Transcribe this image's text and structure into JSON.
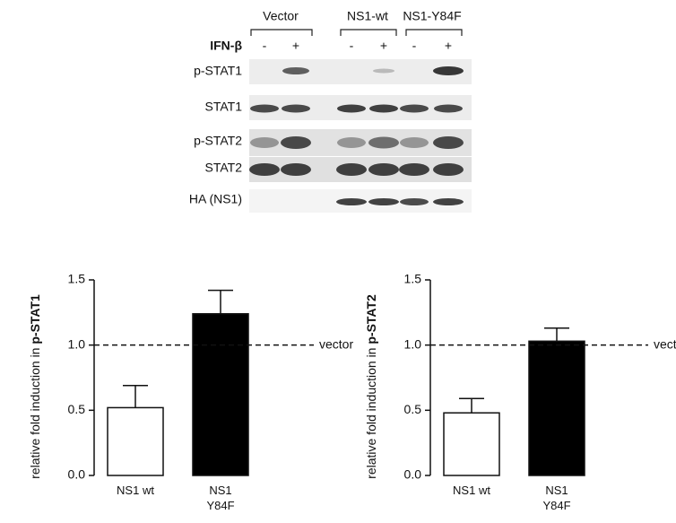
{
  "blot": {
    "groups": [
      "Vector",
      "NS1-wt",
      "NS1-Y84F"
    ],
    "treatment": {
      "label": "IFN-β",
      "signs": [
        "-",
        "+",
        "-",
        "+",
        "-",
        "+"
      ]
    },
    "rows": [
      "p-STAT1",
      "STAT1",
      "p-STAT2",
      "STAT2",
      "HA (NS1)"
    ]
  },
  "chart_data": [
    {
      "type": "bar",
      "ylabel": "relative fold induction in",
      "ylabel_emphasis": "p-STAT1",
      "categories": [
        "NS1 wt",
        "NS1 Y84F"
      ],
      "values": [
        0.52,
        1.24
      ],
      "errors": [
        0.17,
        0.18
      ],
      "colors": [
        "#ffffff",
        "#000000"
      ],
      "ylim": [
        0,
        1.5
      ],
      "yticks": [
        {
          "value": 0,
          "label": "0.0"
        },
        0.5,
        {
          "value": 1,
          "label": "1.0"
        },
        1.5
      ],
      "reference_line": {
        "value": 1,
        "label": "vector"
      }
    },
    {
      "type": "bar",
      "ylabel": "relative fold induction in",
      "ylabel_emphasis": "p-STAT2",
      "categories": [
        "NS1 wt",
        "NS1 Y84F"
      ],
      "values": [
        0.48,
        1.03
      ],
      "errors": [
        0.11,
        0.1
      ],
      "colors": [
        "#ffffff",
        "#000000"
      ],
      "ylim": [
        0,
        1.5
      ],
      "yticks": [
        {
          "value": 0,
          "label": "0.0"
        },
        0.5,
        {
          "value": 1,
          "label": "1.0"
        },
        1.5
      ],
      "reference_line": {
        "value": 1,
        "label": "vector"
      }
    }
  ]
}
